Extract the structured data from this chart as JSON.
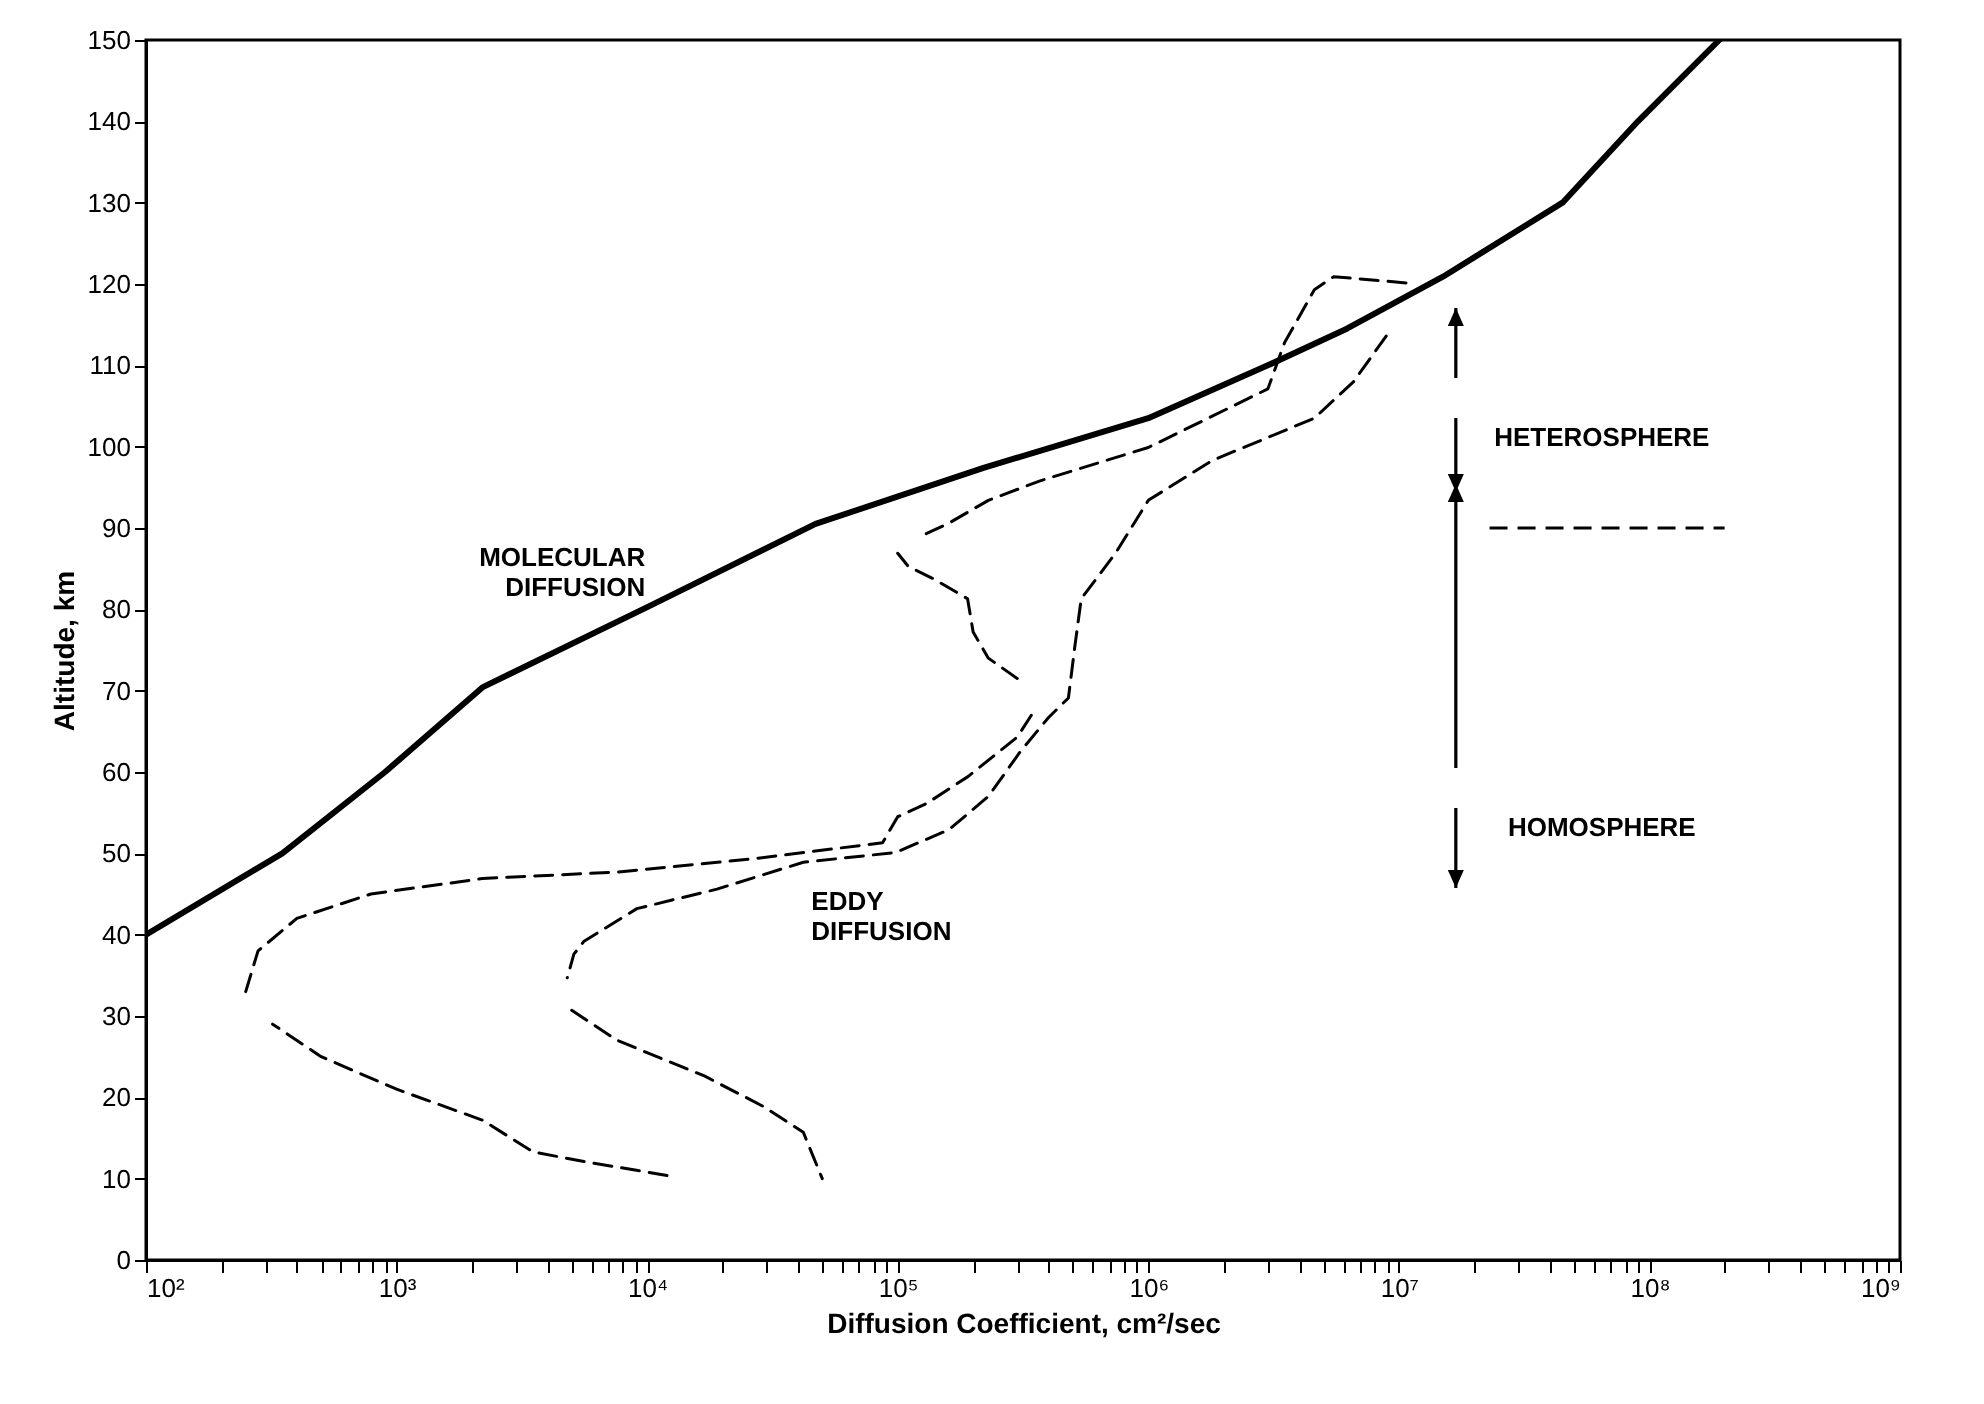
{
  "chart_data": {
    "type": "line",
    "xlabel": "Diffusion Coefficient, cm²/sec",
    "ylabel": "Altitude, km",
    "log": "x",
    "legend": false,
    "grid": false,
    "xlim": [
      100,
      1000000000
    ],
    "ylim": [
      0,
      150
    ],
    "xticks": [
      {
        "value": 100,
        "label": "10²"
      },
      {
        "value": 200,
        "label": null
      },
      {
        "value": 300,
        "label": null
      },
      {
        "value": 400,
        "label": null
      },
      {
        "value": 500,
        "label": null
      },
      {
        "value": 600,
        "label": null
      },
      {
        "value": 700,
        "label": null
      },
      {
        "value": 800,
        "label": null
      },
      {
        "value": 900,
        "label": null
      },
      {
        "value": 1000,
        "label": "10³"
      },
      {
        "value": 2000,
        "label": null
      },
      {
        "value": 3000,
        "label": null
      },
      {
        "value": 4000,
        "label": null
      },
      {
        "value": 5000,
        "label": null
      },
      {
        "value": 6000,
        "label": null
      },
      {
        "value": 7000,
        "label": null
      },
      {
        "value": 8000,
        "label": null
      },
      {
        "value": 9000,
        "label": null
      },
      {
        "value": 10000,
        "label": "10⁴"
      },
      {
        "value": 20000,
        "label": null
      },
      {
        "value": 30000,
        "label": null
      },
      {
        "value": 40000,
        "label": null
      },
      {
        "value": 50000,
        "label": null
      },
      {
        "value": 60000,
        "label": null
      },
      {
        "value": 70000,
        "label": null
      },
      {
        "value": 80000,
        "label": null
      },
      {
        "value": 90000,
        "label": null
      },
      {
        "value": 100000,
        "label": "10⁵"
      },
      {
        "value": 200000,
        "label": null
      },
      {
        "value": 300000,
        "label": null
      },
      {
        "value": 400000,
        "label": null
      },
      {
        "value": 500000,
        "label": null
      },
      {
        "value": 600000,
        "label": null
      },
      {
        "value": 700000,
        "label": null
      },
      {
        "value": 800000,
        "label": null
      },
      {
        "value": 900000,
        "label": null
      },
      {
        "value": 1000000,
        "label": "10⁶"
      },
      {
        "value": 2000000,
        "label": null
      },
      {
        "value": 3000000,
        "label": null
      },
      {
        "value": 4000000,
        "label": null
      },
      {
        "value": 5000000,
        "label": null
      },
      {
        "value": 6000000,
        "label": null
      },
      {
        "value": 7000000,
        "label": null
      },
      {
        "value": 8000000,
        "label": null
      },
      {
        "value": 9000000,
        "label": null
      },
      {
        "value": 10000000,
        "label": "10⁷"
      },
      {
        "value": 20000000,
        "label": null
      },
      {
        "value": 30000000,
        "label": null
      },
      {
        "value": 40000000,
        "label": null
      },
      {
        "value": 50000000,
        "label": null
      },
      {
        "value": 60000000,
        "label": null
      },
      {
        "value": 70000000,
        "label": null
      },
      {
        "value": 80000000,
        "label": null
      },
      {
        "value": 90000000,
        "label": null
      },
      {
        "value": 100000000,
        "label": "10⁸"
      },
      {
        "value": 200000000,
        "label": null
      },
      {
        "value": 300000000,
        "label": null
      },
      {
        "value": 400000000,
        "label": null
      },
      {
        "value": 500000000,
        "label": null
      },
      {
        "value": 600000000,
        "label": null
      },
      {
        "value": 700000000,
        "label": null
      },
      {
        "value": 800000000,
        "label": null
      },
      {
        "value": 900000000,
        "label": null
      },
      {
        "value": 1000000000,
        "label": "10⁹"
      }
    ],
    "yticks": [
      0,
      10,
      20,
      30,
      40,
      50,
      60,
      70,
      80,
      90,
      100,
      110,
      120,
      130,
      140,
      150
    ],
    "series": [
      {
        "name": "MOLECULAR DIFFUSION",
        "color": "#000000",
        "line_style": "solid",
        "x": [
          100,
          350,
          900,
          2200,
          10200,
          47000,
          220000,
          1000000,
          3000000,
          6200000,
          15000000,
          45000000,
          90000000,
          190000000
        ],
        "values": [
          40,
          50,
          60,
          70.4,
          80.4,
          90.5,
          97.4,
          103.5,
          110,
          114.5,
          120.9,
          130,
          140,
          150
        ]
      },
      {
        "color": "#000000",
        "line_style": "dashed",
        "x": [
          250,
          280,
          400,
          790,
          2200,
          7600,
          26000,
          87000,
          100000,
          130000,
          190000,
          300000,
          350000
        ],
        "values": [
          33,
          38,
          42,
          45,
          46.9,
          47.7,
          49.3,
          51.3,
          54.5,
          56.1,
          59.4,
          64.3,
          67.5
        ]
      },
      {
        "color": "#000000",
        "line_style": "dashed",
        "x": [
          300000,
          230000,
          200000,
          190000,
          140000,
          110000,
          100000
        ],
        "values": [
          71.5,
          74,
          77.2,
          81.3,
          83.7,
          85.3,
          86.9
        ]
      },
      {
        "color": "#000000",
        "line_style": "dashed",
        "x": [
          130000,
          160000,
          230000,
          370000,
          1000000,
          3000000,
          3500000,
          4600000,
          5500000,
          11000000
        ],
        "values": [
          89.3,
          90.6,
          93.4,
          95.8,
          99.9,
          107.1,
          112.8,
          119.3,
          120.9,
          120.1
        ]
      },
      {
        "name": "EDDY DIFFUSION",
        "color": "#000000",
        "line_style": "dashed",
        "x": [
          8900000,
          6600000,
          4600000,
          1800000,
          1000000,
          740000,
          540000,
          510000,
          480000,
          400000,
          310000,
          230000,
          160000,
          98000,
          42000,
          19000,
          9100,
          5600,
          5100,
          4800
        ],
        "values": [
          113.6,
          108,
          103.5,
          98.3,
          93.4,
          86.9,
          81.3,
          75.6,
          69.1,
          66.7,
          62.6,
          57,
          52.9,
          50.1,
          48.9,
          45.6,
          43.2,
          39.2,
          37.6,
          34.7
        ]
      },
      {
        "color": "#000000",
        "line_style": "dashed",
        "x": [
          5000,
          7600,
          17000,
          29000,
          42000,
          50000
        ],
        "values": [
          30.7,
          27,
          22.6,
          18.9,
          15.7,
          10
        ]
      },
      {
        "color": "#000000",
        "line_style": "dashed",
        "x": [
          12000,
          5600,
          3500,
          2200,
          1000,
          500,
          320
        ],
        "values": [
          10.4,
          12.1,
          13.3,
          17.2,
          21,
          25,
          29
        ]
      }
    ],
    "ref_lines": [
      {
        "axis": "y",
        "value": 90,
        "line_style": "dashed",
        "color": "#000000"
      }
    ],
    "annotations": [
      "HETEROSPHERE",
      "HOMOSPHERE"
    ]
  }
}
